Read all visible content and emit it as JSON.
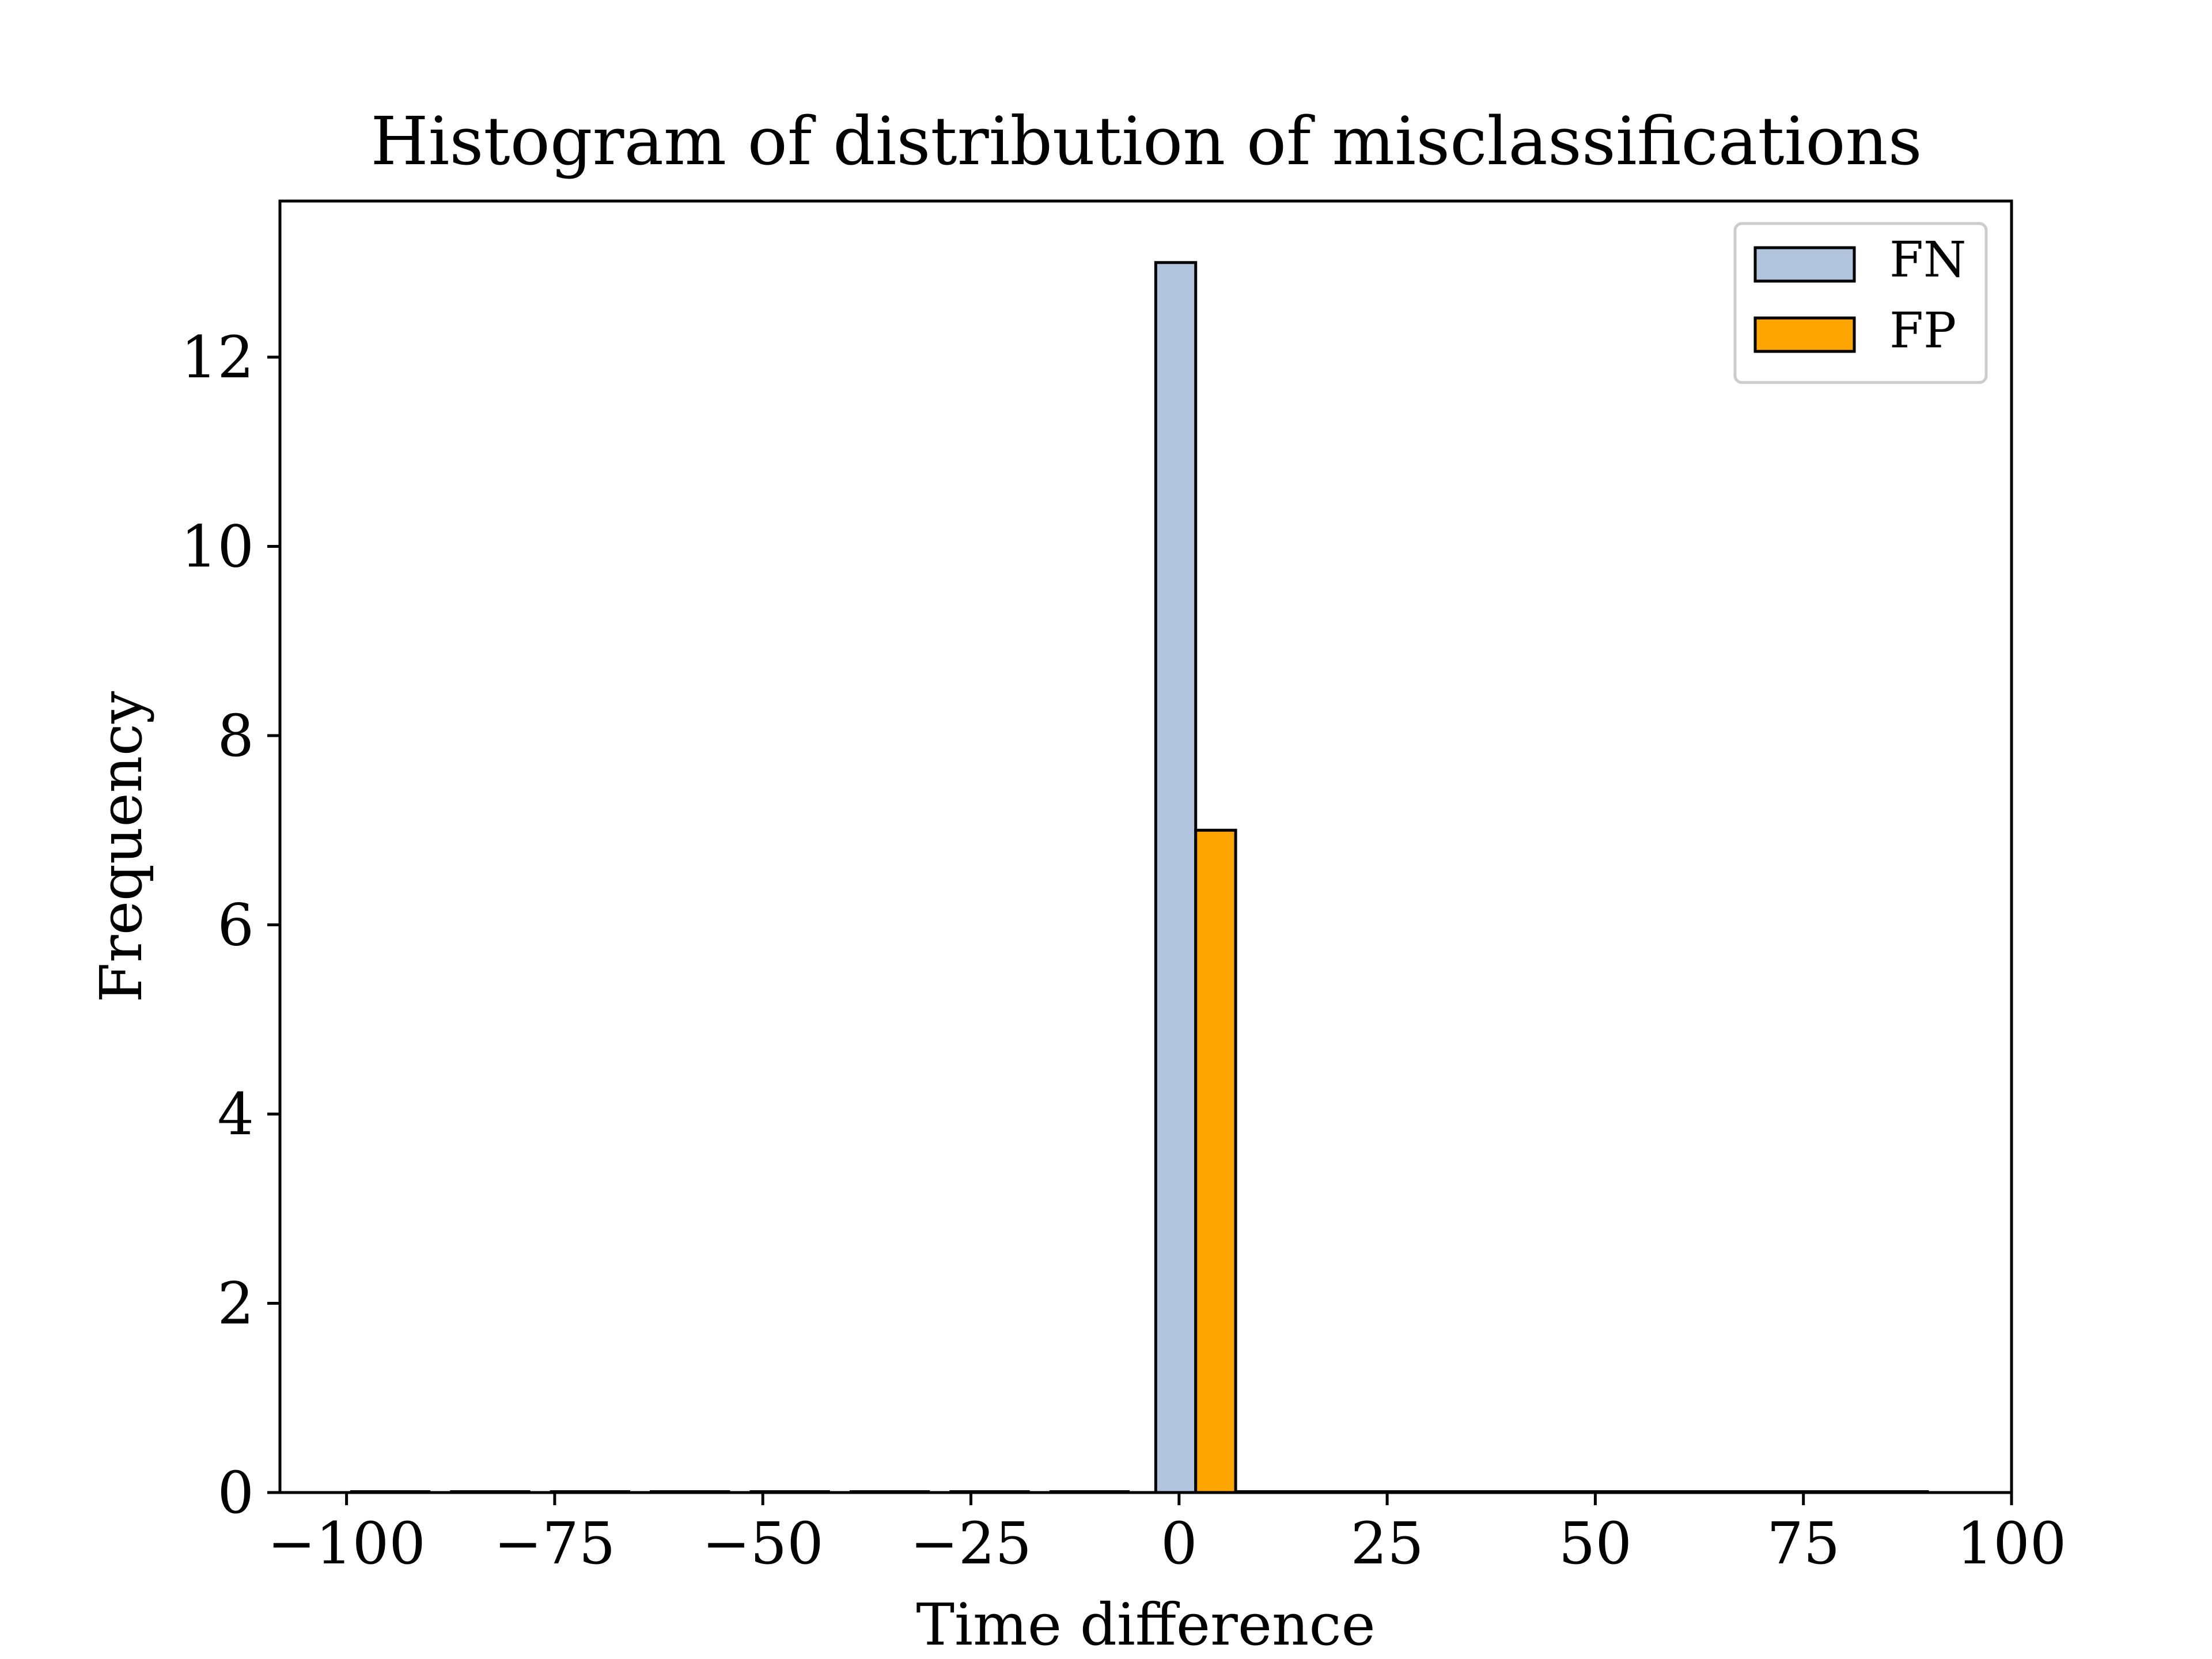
{
  "chart_data": {
    "type": "bar",
    "title": "Histogram of distribution of misclassifications",
    "xlabel": "Time difference",
    "ylabel": "Frequency",
    "xlim": [
      -108,
      100
    ],
    "ylim": [
      0,
      13.65
    ],
    "xticks": [
      -100,
      -75,
      -50,
      -25,
      0,
      25,
      50,
      75,
      100
    ],
    "xtick_labels": [
      "−100",
      "−75",
      "−50",
      "−25",
      "0",
      "25",
      "50",
      "75",
      "100"
    ],
    "yticks": [
      0,
      2,
      4,
      6,
      8,
      10,
      12
    ],
    "ytick_labels": [
      "0",
      "2",
      "4",
      "6",
      "8",
      "10",
      "12"
    ],
    "grid": false,
    "legend_position": "top-right",
    "bin_width": 4.8,
    "series": [
      {
        "name": "FN",
        "color": "#b0c4de",
        "bins": [
          {
            "x0": -99.5,
            "x1": -90,
            "value": 0
          },
          {
            "x0": -87.5,
            "x1": -78,
            "value": 0
          },
          {
            "x0": -75.5,
            "x1": -66,
            "value": 0
          },
          {
            "x0": -63.5,
            "x1": -54,
            "value": 0
          },
          {
            "x0": -51.5,
            "x1": -42,
            "value": 0
          },
          {
            "x0": -39.5,
            "x1": -30,
            "value": 0
          },
          {
            "x0": -27.5,
            "x1": -18,
            "value": 0
          },
          {
            "x0": -15.5,
            "x1": -6,
            "value": 0
          },
          {
            "x0": -2.8,
            "x1": 2.0,
            "value": 13
          }
        ]
      },
      {
        "name": "FP",
        "color": "#ffa500",
        "bins": [
          {
            "x0": 2.0,
            "x1": 6.8,
            "value": 7
          },
          {
            "x0": 6.8,
            "x1": 18,
            "value": 0
          },
          {
            "x0": 18,
            "x1": 30,
            "value": 0
          },
          {
            "x0": 30,
            "x1": 42,
            "value": 0
          },
          {
            "x0": 42,
            "x1": 54,
            "value": 0
          },
          {
            "x0": 54,
            "x1": 66,
            "value": 0
          },
          {
            "x0": 66,
            "x1": 78,
            "value": 0
          },
          {
            "x0": 78,
            "x1": 90,
            "value": 0
          }
        ]
      }
    ]
  }
}
